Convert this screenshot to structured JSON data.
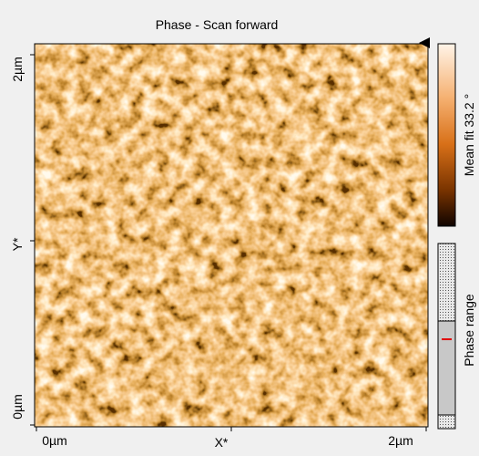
{
  "title": "Phase - Scan forward",
  "image": {
    "x_axis": {
      "start": "0µm",
      "label": "X*",
      "end": "2µm"
    },
    "y_axis": {
      "start": "0µm",
      "label": "Y*",
      "end": "2µm"
    }
  },
  "colorbar": {
    "label": "Mean fit 33.2 °"
  },
  "range_panel": {
    "label": "Phase range"
  }
}
